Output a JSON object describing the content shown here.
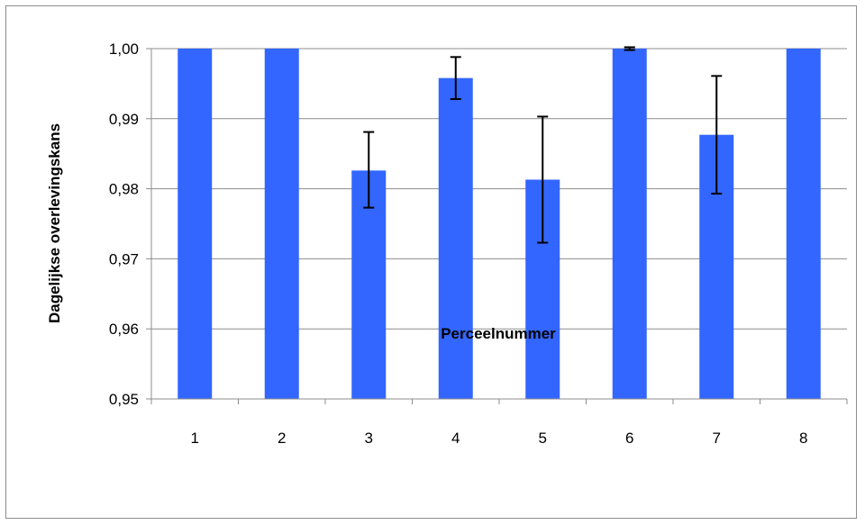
{
  "chart_data": {
    "type": "bar",
    "title": "",
    "xlabel": "Perceelnummer",
    "ylabel": "Dagelijkse overlevingskans",
    "categories": [
      "1",
      "2",
      "3",
      "4",
      "5",
      "6",
      "7",
      "8"
    ],
    "series": [
      {
        "values": [
          1.0,
          1.0,
          0.9826,
          0.9958,
          0.9813,
          1.0,
          0.9877,
          1.0
        ],
        "error_upper": [
          null,
          null,
          0.9881,
          0.9988,
          0.9903,
          1.0002,
          0.9961,
          null
        ],
        "error_lower": [
          null,
          null,
          0.9773,
          0.9928,
          0.9723,
          0.9998,
          0.9793,
          null
        ],
        "color": "#3366FF"
      }
    ],
    "ylim": [
      0.95,
      1.0
    ],
    "yticks": [
      0.95,
      0.96,
      0.97,
      0.98,
      0.99,
      1.0
    ],
    "ytick_labels": [
      "0,95",
      "0,96",
      "0,97",
      "0,98",
      "0,99",
      "1,00"
    ],
    "grid": true,
    "legend": "none"
  }
}
